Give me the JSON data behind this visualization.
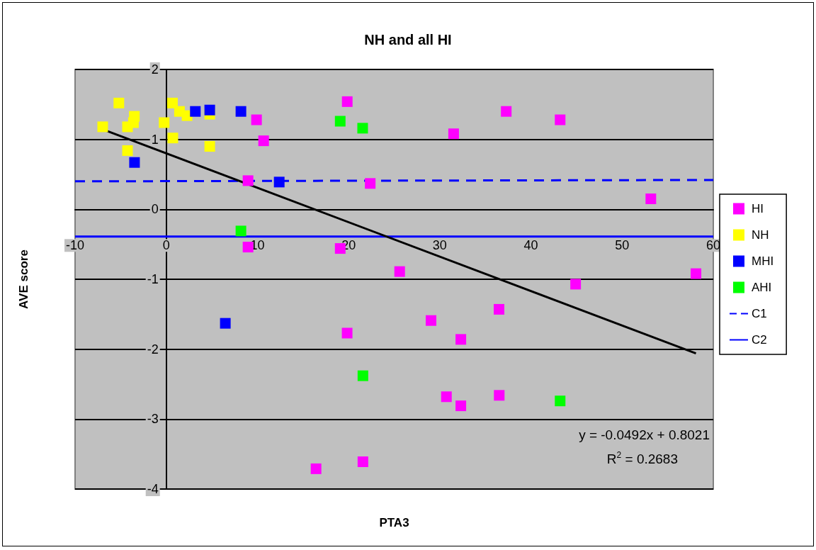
{
  "chart_data": {
    "type": "scatter",
    "title": "NH and all HI",
    "xlabel": "PTA3",
    "ylabel": "AVE score",
    "xlim": [
      -10,
      60
    ],
    "xticks": [
      -10,
      0,
      10,
      20,
      30,
      40,
      50,
      60
    ],
    "ylim": [
      -4,
      2
    ],
    "yticks": [
      -4,
      -3,
      -2,
      -1,
      0,
      1,
      2
    ],
    "grid": "y",
    "legend": "right",
    "marker": "square",
    "annotations": [
      "y = -0.0492x + 0.8021",
      "R$^{2}$ = 0.2683"
    ],
    "series": [
      {
        "name": "HI",
        "color": "#ff00ff",
        "x": [
          19.85,
          9.9,
          10.68,
          8.97,
          22.37,
          8.97,
          19.08,
          31.52,
          37.29,
          43.2,
          53.15,
          25.6,
          58.1,
          44.9,
          36.5,
          29.04,
          32.31,
          19.84,
          30.73,
          32.31,
          36.52,
          21.57,
          16.43
        ],
        "values": [
          1.54,
          1.28,
          0.98,
          0.41,
          0.37,
          -0.54,
          -0.56,
          1.08,
          1.4,
          1.28,
          0.15,
          -0.89,
          -0.92,
          -1.07,
          -1.43,
          -1.59,
          -1.86,
          -1.77,
          -2.68,
          -2.81,
          -2.66,
          -3.61,
          -3.71
        ]
      },
      {
        "name": "NH",
        "color": "#ffff00",
        "x": [
          -6.97,
          -5.2,
          -4.25,
          -3.5,
          -3.6,
          -4.25,
          -0.23,
          0.68,
          0.72,
          1.45,
          2.28,
          4.77,
          4.77
        ],
        "values": [
          1.18,
          1.52,
          1.18,
          1.33,
          1.24,
          0.84,
          1.24,
          1.52,
          1.02,
          1.4,
          1.34,
          1.36,
          0.9
        ]
      },
      {
        "name": "MHI",
        "color": "#0000ff",
        "x": [
          3.19,
          4.77,
          8.19,
          -3.48,
          12.39,
          6.48
        ],
        "values": [
          1.4,
          1.42,
          1.4,
          0.67,
          0.39,
          -1.63
        ]
      },
      {
        "name": "AHI",
        "color": "#00ff00",
        "x": [
          19.08,
          21.54,
          8.19,
          21.57,
          43.2
        ],
        "values": [
          1.26,
          1.16,
          -0.31,
          -2.38,
          -2.74
        ]
      },
      {
        "name": "C1",
        "type": "line",
        "color": "#0000ff",
        "line_style": "dashed",
        "marker": "none",
        "x": [
          -10,
          60
        ],
        "values": [
          0.4,
          0.42
        ]
      },
      {
        "name": "C2",
        "type": "line",
        "color": "#0000ff",
        "line_style": "solid",
        "marker": "none",
        "x": [
          -10,
          60
        ],
        "values": [
          -0.39,
          -0.39
        ]
      },
      {
        "type": "line",
        "color": "#000000",
        "line_style": "solid",
        "marker": "none",
        "x": [
          -7.1,
          58.1
        ],
        "values": [
          1.15,
          -2.06
        ]
      }
    ]
  }
}
